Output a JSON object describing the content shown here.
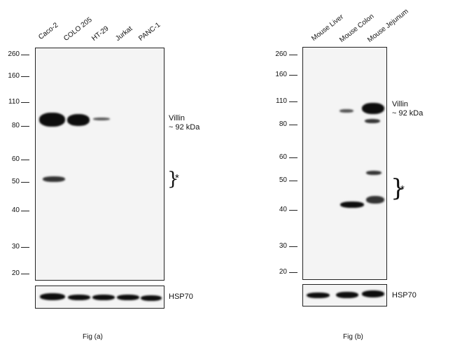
{
  "panel_a": {
    "lanes": [
      "Caco-2",
      "COLO 205",
      "HT-29",
      "Jurkat",
      "PANC-1"
    ],
    "mw_markers": [
      "260",
      "160",
      "110",
      "80",
      "60",
      "50",
      "40",
      "30",
      "20"
    ],
    "target_label": "Villin",
    "target_size": "~ 92 kDa",
    "nonspecific_marker": "*",
    "loading_control": "HSP70",
    "caption": "Fig (a)"
  },
  "panel_b": {
    "lanes": [
      "Mouse Liver",
      "Mouse Colon",
      "Mouse Jejunum"
    ],
    "mw_markers": [
      "260",
      "160",
      "110",
      "80",
      "60",
      "50",
      "40",
      "30",
      "20"
    ],
    "target_label": "Villin",
    "target_size": "~ 92 kDa",
    "nonspecific_marker": "*",
    "loading_control": "HSP70",
    "caption": "Fig (b)"
  }
}
